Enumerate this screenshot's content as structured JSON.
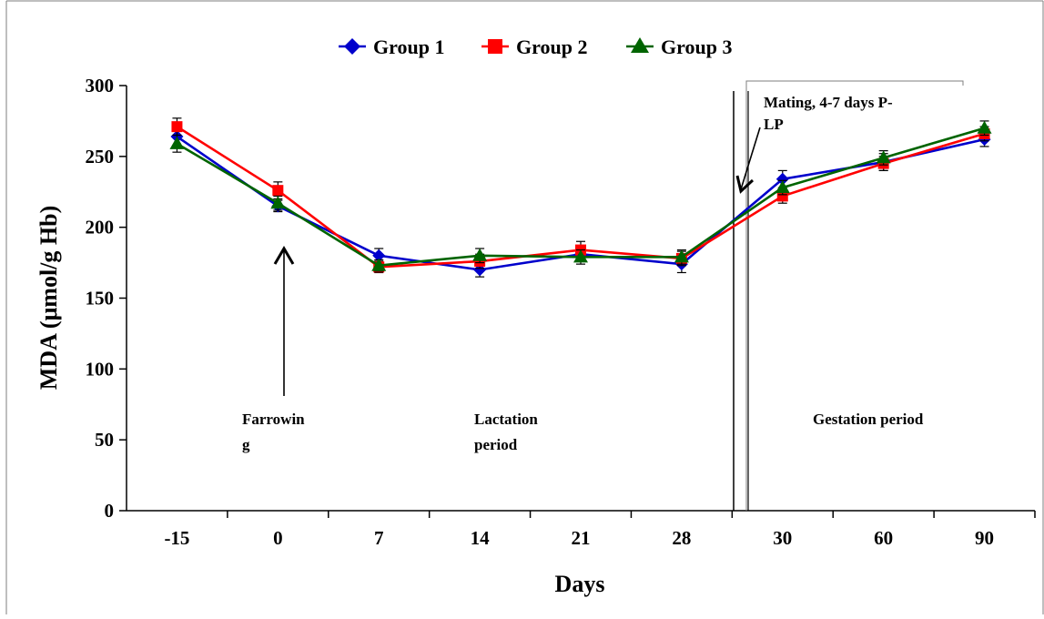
{
  "chart_data": {
    "type": "line",
    "xlabel": "Days",
    "ylabel": "MDA (μmol/g Hb)",
    "categories": [
      "-15",
      "0",
      "7",
      "14",
      "21",
      "28",
      "30",
      "60",
      "90"
    ],
    "ylim": [
      0,
      300
    ],
    "yticks": [
      "0",
      "50",
      "100",
      "150",
      "200",
      "250",
      "300"
    ],
    "grid": false,
    "legend_position": "top-center",
    "series": [
      {
        "name": "Group 1",
        "color": "#0000cc",
        "marker": "diamond",
        "values": [
          264,
          215,
          180,
          170,
          181,
          174,
          234,
          246,
          262
        ],
        "errors": [
          6,
          4,
          5,
          5,
          5,
          6,
          6,
          6,
          5
        ]
      },
      {
        "name": "Group 2",
        "color": "#ff0000",
        "marker": "square",
        "values": [
          271,
          226,
          172,
          176,
          184,
          178,
          222,
          245,
          266
        ],
        "errors": [
          6,
          6,
          4,
          5,
          6,
          5,
          5,
          5,
          5
        ]
      },
      {
        "name": "Group 3",
        "color": "#006400",
        "marker": "triangle",
        "values": [
          259,
          217,
          173,
          180,
          179,
          179,
          228,
          249,
          270
        ],
        "errors": [
          6,
          5,
          4,
          5,
          5,
          5,
          5,
          5,
          5
        ]
      }
    ],
    "annotations": {
      "farrowing_line1": "Farrowin",
      "farrowing_line2": "g",
      "lactation_line1": "Lactation",
      "lactation_line2": "period",
      "gestation": "Gestation period",
      "mating_line1": "Mating,  4-7  days  P-",
      "mating_line2": "LP"
    }
  }
}
